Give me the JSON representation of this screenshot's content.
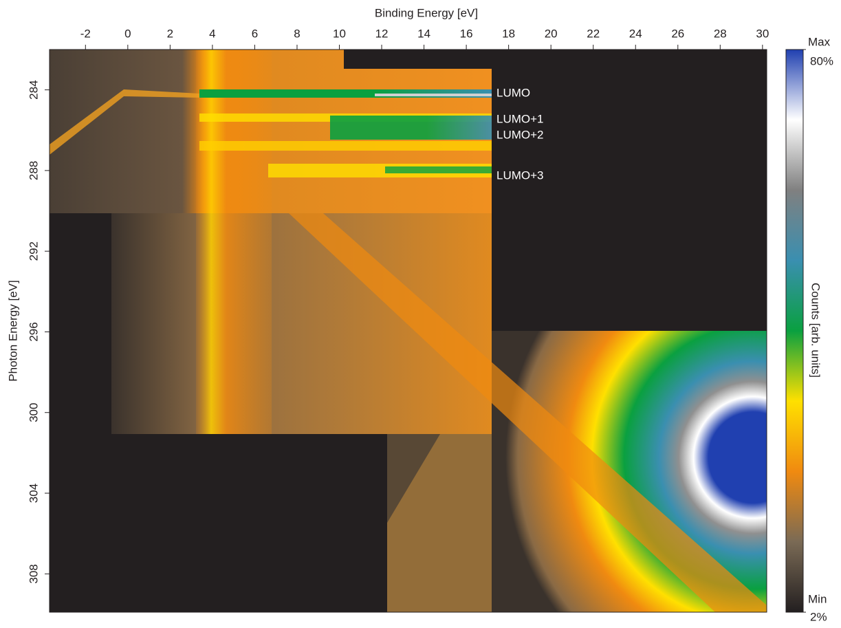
{
  "chart_data": {
    "type": "heatmap",
    "x_label": "Binding Energy [eV]",
    "y_label": "Photon Energy [eV]",
    "xlim": [
      -3.7,
      30.2
    ],
    "xticks": [
      -2,
      0,
      2,
      4,
      6,
      8,
      10,
      12,
      14,
      16,
      18,
      20,
      22,
      24,
      26,
      28,
      30
    ],
    "ylim": [
      282,
      309.9
    ],
    "yticks": [
      284,
      288,
      292,
      296,
      300,
      304,
      308
    ],
    "annotations": [
      "LUMO",
      "LUMO+1",
      "LUMO+2",
      "LUMO+3"
    ],
    "colorbar": {
      "label": "Counts [arb. units]",
      "max_label": "Max",
      "min_label": "Min",
      "clim": [
        2,
        80
      ],
      "ticks": [
        {
          "value": 80,
          "label": "80%"
        },
        {
          "value": 2,
          "label": "2%"
        }
      ],
      "colors": [
        "#231f20",
        "#7a6a55",
        "#f08a10",
        "#ffe000",
        "#0aa040",
        "#3a8fb0",
        "#808080",
        "#ffffff",
        "#2040b0"
      ]
    }
  }
}
